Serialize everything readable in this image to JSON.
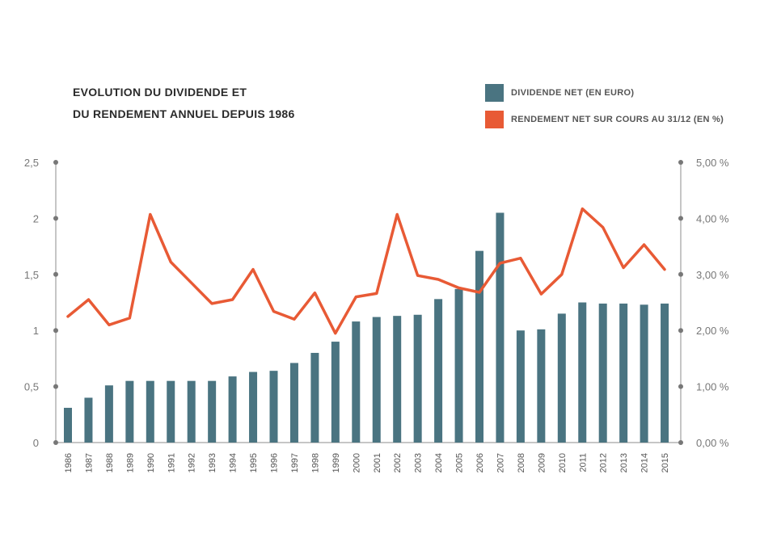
{
  "title": {
    "line1": "EVOLUTION DU DIVIDENDE ET",
    "line2": "DU RENDEMENT ANNUEL DEPUIS 1986"
  },
  "legend": [
    {
      "label": "DIVIDENDE NET (EN EURO)",
      "color": "#4a7481"
    },
    {
      "label": "RENDEMENT NET SUR COURS AU 31/12 (EN %)",
      "color": "#e85a35"
    }
  ],
  "chart_data": {
    "type": "bar+line",
    "categories": [
      "1986",
      "1987",
      "1988",
      "1989",
      "1990",
      "1991",
      "1992",
      "1993",
      "1994",
      "1995",
      "1996",
      "1997",
      "1998",
      "1999",
      "2000",
      "2001",
      "2002",
      "2003",
      "2004",
      "2005",
      "2006",
      "2007",
      "2008",
      "2009",
      "2010",
      "2011",
      "2012",
      "2013",
      "2014",
      "2015"
    ],
    "series": [
      {
        "name": "DIVIDENDE NET (EN EURO)",
        "type": "bar",
        "axis": "left",
        "color": "#4a7481",
        "values": [
          0.31,
          0.4,
          0.51,
          0.55,
          0.55,
          0.55,
          0.55,
          0.55,
          0.59,
          0.63,
          0.64,
          0.71,
          0.8,
          0.9,
          1.08,
          1.12,
          1.13,
          1.14,
          1.28,
          1.37,
          1.71,
          2.05,
          1.0,
          1.01,
          1.15,
          1.25,
          1.24,
          1.24,
          1.23,
          1.24
        ]
      },
      {
        "name": "RENDEMENT NET SUR COURS AU 31/12 (EN %)",
        "type": "line",
        "axis": "right",
        "color": "#e85a35",
        "values": [
          2.25,
          2.55,
          2.1,
          2.22,
          4.07,
          3.22,
          2.85,
          2.48,
          2.55,
          3.09,
          2.34,
          2.2,
          2.67,
          1.95,
          2.6,
          2.66,
          4.07,
          2.98,
          2.91,
          2.76,
          2.68,
          3.2,
          3.29,
          2.65,
          3.0,
          4.17,
          3.84,
          3.12,
          3.53,
          3.09
        ]
      }
    ],
    "y_left": {
      "min": 0,
      "max": 2.5,
      "ticks": [
        "0",
        "0,5",
        "1",
        "1,5",
        "2",
        "2,5"
      ]
    },
    "y_right": {
      "min": 0,
      "max": 5,
      "ticks": [
        "0,00 %",
        "1,00 %",
        "2,00 %",
        "3,00 %",
        "4,00 %",
        "5,00 %"
      ]
    },
    "grid": false,
    "legend_position": "top-right"
  }
}
